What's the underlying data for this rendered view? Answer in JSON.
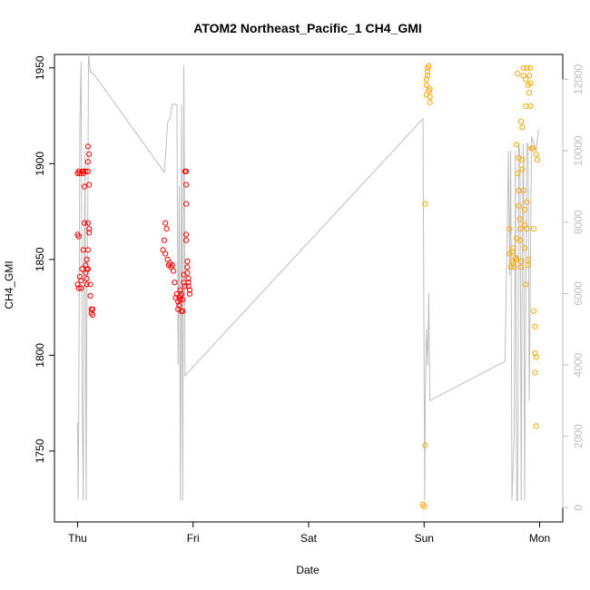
{
  "chart_data": {
    "type": "scatter",
    "title": "ATOM2 Northeast_Pacific_1 CH4_GMI",
    "xlabel": "Date",
    "ylabel": "CH4_GMI",
    "x_ticks": [
      "Thu",
      "Fri",
      "Sat",
      "Sun",
      "Mon"
    ],
    "x_range_days": [
      -0.2,
      4.2
    ],
    "ylim": [
      1713,
      1957
    ],
    "y_ticks": [
      1750,
      1800,
      1850,
      1900,
      1950
    ],
    "y2_ticks": [
      0,
      2000,
      4000,
      6000,
      8000,
      10000,
      12000
    ],
    "y2lim": [
      -400,
      12700
    ],
    "grid": false,
    "colors": {
      "points_red": "#ff0000",
      "points_orange": "#ffa500",
      "altitude_line": "#bebebe"
    },
    "series": [
      {
        "color_key": "points_red",
        "points": [
          [
            0.0,
            1863
          ],
          [
            0.01,
            1862
          ],
          [
            0.0,
            1837
          ],
          [
            0.01,
            1835
          ],
          [
            0.0,
            1895
          ],
          [
            0.01,
            1896
          ],
          [
            0.02,
            1895
          ],
          [
            0.02,
            1841
          ],
          [
            0.03,
            1835
          ],
          [
            0.03,
            1839
          ],
          [
            0.04,
            1845
          ],
          [
            0.05,
            1895
          ],
          [
            0.05,
            1896
          ],
          [
            0.04,
            1896
          ],
          [
            0.05,
            1855
          ],
          [
            0.06,
            1888
          ],
          [
            0.06,
            1869
          ],
          [
            0.07,
            1847
          ],
          [
            0.07,
            1843
          ],
          [
            0.07,
            1896
          ],
          [
            0.08,
            1845
          ],
          [
            0.08,
            1850
          ],
          [
            0.08,
            1840
          ],
          [
            0.08,
            1837
          ],
          [
            0.09,
            1909
          ],
          [
            0.09,
            1901
          ],
          [
            0.09,
            1896
          ],
          [
            0.09,
            1869
          ],
          [
            0.09,
            1855
          ],
          [
            0.09,
            1845
          ],
          [
            0.1,
            1905
          ],
          [
            0.1,
            1889
          ],
          [
            0.1,
            1866
          ],
          [
            0.1,
            1864
          ],
          [
            0.11,
            1837
          ],
          [
            0.11,
            1831
          ],
          [
            0.12,
            1824
          ],
          [
            0.12,
            1822
          ],
          [
            0.13,
            1824
          ],
          [
            0.13,
            1821
          ],
          [
            0.76,
            1869
          ],
          [
            0.77,
            1866
          ],
          [
            0.75,
            1860
          ],
          [
            0.74,
            1855
          ],
          [
            0.76,
            1853
          ],
          [
            0.78,
            1850
          ],
          [
            0.79,
            1847
          ],
          [
            0.8,
            1848
          ],
          [
            0.81,
            1846
          ],
          [
            0.82,
            1847
          ],
          [
            0.83,
            1844
          ],
          [
            0.84,
            1838
          ],
          [
            0.85,
            1830
          ],
          [
            0.86,
            1832
          ],
          [
            0.87,
            1828
          ],
          [
            0.87,
            1824
          ],
          [
            0.88,
            1830
          ],
          [
            0.88,
            1826
          ],
          [
            0.89,
            1831
          ],
          [
            0.89,
            1834
          ],
          [
            0.89,
            1829
          ],
          [
            0.9,
            1823
          ],
          [
            0.9,
            1832
          ],
          [
            0.91,
            1823
          ],
          [
            0.91,
            1829
          ],
          [
            0.92,
            1842
          ],
          [
            0.92,
            1838
          ],
          [
            0.93,
            1836
          ],
          [
            0.93,
            1896
          ],
          [
            0.94,
            1896
          ],
          [
            0.94,
            1889
          ],
          [
            0.94,
            1879
          ],
          [
            0.94,
            1863
          ],
          [
            0.94,
            1860
          ],
          [
            0.95,
            1849
          ],
          [
            0.95,
            1846
          ],
          [
            0.95,
            1843
          ],
          [
            0.96,
            1840
          ],
          [
            0.96,
            1838
          ],
          [
            0.96,
            1836
          ],
          [
            0.97,
            1834
          ],
          [
            0.97,
            1832
          ]
        ]
      },
      {
        "color_key": "points_orange",
        "points": [
          [
            2.99,
            1722
          ],
          [
            3.0,
            1721
          ],
          [
            3.01,
            1753
          ],
          [
            3.01,
            1879
          ],
          [
            3.02,
            1936
          ],
          [
            3.02,
            1941
          ],
          [
            3.02,
            1944
          ],
          [
            3.03,
            1948
          ],
          [
            3.03,
            1950
          ],
          [
            3.03,
            1946
          ],
          [
            3.04,
            1951
          ],
          [
            3.04,
            1938
          ],
          [
            3.05,
            1935
          ],
          [
            3.05,
            1932
          ],
          [
            3.05,
            1939
          ],
          [
            3.74,
            1853
          ],
          [
            3.74,
            1866
          ],
          [
            3.75,
            1846
          ],
          [
            3.76,
            1849
          ],
          [
            3.76,
            1854
          ],
          [
            3.77,
            1856
          ],
          [
            3.77,
            1848
          ],
          [
            3.78,
            1846
          ],
          [
            3.79,
            1851
          ],
          [
            3.8,
            1850
          ],
          [
            3.8,
            1861
          ],
          [
            3.8,
            1910
          ],
          [
            3.81,
            1895
          ],
          [
            3.81,
            1947
          ],
          [
            3.82,
            1903
          ],
          [
            3.82,
            1886
          ],
          [
            3.82,
            1878
          ],
          [
            3.83,
            1871
          ],
          [
            3.83,
            1866
          ],
          [
            3.83,
            1860
          ],
          [
            3.84,
            1849
          ],
          [
            3.84,
            1846
          ],
          [
            3.84,
            1922
          ],
          [
            3.85,
            1919
          ],
          [
            3.85,
            1902
          ],
          [
            3.85,
            1897
          ],
          [
            3.86,
            1950
          ],
          [
            3.86,
            1946
          ],
          [
            3.86,
            1886
          ],
          [
            3.87,
            1876
          ],
          [
            3.87,
            1868
          ],
          [
            3.87,
            1856
          ],
          [
            3.88,
            1837
          ],
          [
            3.88,
            1930
          ],
          [
            3.88,
            1944
          ],
          [
            3.89,
            1950
          ],
          [
            3.89,
            1880
          ],
          [
            3.89,
            1866
          ],
          [
            3.9,
            1850
          ],
          [
            3.9,
            1847
          ],
          [
            3.9,
            1941
          ],
          [
            3.91,
            1946
          ],
          [
            3.91,
            1937
          ],
          [
            3.92,
            1942
          ],
          [
            3.92,
            1950
          ],
          [
            3.92,
            1930
          ],
          [
            3.93,
            1908
          ],
          [
            3.94,
            1908
          ],
          [
            3.95,
            1866
          ],
          [
            3.95,
            1823
          ],
          [
            3.96,
            1815
          ],
          [
            3.96,
            1801
          ],
          [
            3.97,
            1799
          ],
          [
            3.96,
            1791
          ],
          [
            3.97,
            1763
          ],
          [
            3.97,
            1905
          ],
          [
            3.98,
            1902
          ]
        ]
      }
    ],
    "altitude_series": {
      "color_key": "altitude_line",
      "points": [
        [
          0.0,
          2400
        ],
        [
          0.005,
          200
        ],
        [
          0.01,
          2400
        ],
        [
          0.02,
          10800
        ],
        [
          0.03,
          12500
        ],
        [
          0.035,
          8000
        ],
        [
          0.04,
          3000
        ],
        [
          0.05,
          200
        ],
        [
          0.055,
          6000
        ],
        [
          0.065,
          10000
        ],
        [
          0.07,
          4000
        ],
        [
          0.075,
          200
        ],
        [
          0.08,
          5000
        ],
        [
          0.09,
          9000
        ],
        [
          0.095,
          12700
        ],
        [
          0.1,
          12600
        ],
        [
          0.11,
          12200
        ],
        [
          0.13,
          12200
        ],
        [
          0.75,
          9400
        ],
        [
          0.76,
          9800
        ],
        [
          0.78,
          10800
        ],
        [
          0.8,
          10900
        ],
        [
          0.82,
          11300
        ],
        [
          0.86,
          11300
        ],
        [
          0.87,
          4000
        ],
        [
          0.88,
          9000
        ],
        [
          0.89,
          200
        ],
        [
          0.895,
          5000
        ],
        [
          0.9,
          11300
        ],
        [
          0.905,
          6000
        ],
        [
          0.91,
          200
        ],
        [
          0.915,
          6000
        ],
        [
          0.92,
          12400
        ],
        [
          0.925,
          9000
        ],
        [
          0.93,
          3700
        ],
        [
          2.99,
          10900
        ],
        [
          3.0,
          3600
        ],
        [
          3.005,
          200
        ],
        [
          3.01,
          3000
        ],
        [
          3.02,
          5000
        ],
        [
          3.03,
          4000
        ],
        [
          3.04,
          6000
        ],
        [
          3.05,
          3000
        ],
        [
          3.7,
          4100
        ],
        [
          3.73,
          10000
        ],
        [
          3.74,
          6500
        ],
        [
          3.75,
          10000
        ],
        [
          3.76,
          200
        ],
        [
          3.78,
          2000
        ],
        [
          3.79,
          10000
        ],
        [
          3.8,
          200
        ],
        [
          3.81,
          200
        ],
        [
          3.82,
          10200
        ],
        [
          3.83,
          9900
        ],
        [
          3.84,
          200
        ],
        [
          3.85,
          8000
        ],
        [
          3.86,
          10200
        ],
        [
          3.87,
          200
        ],
        [
          3.88,
          6000
        ],
        [
          3.89,
          10200
        ],
        [
          3.9,
          10200
        ],
        [
          3.91,
          3000
        ],
        [
          3.93,
          10400
        ],
        [
          3.95,
          10200
        ],
        [
          3.97,
          10000
        ],
        [
          3.99,
          10600
        ]
      ]
    }
  }
}
